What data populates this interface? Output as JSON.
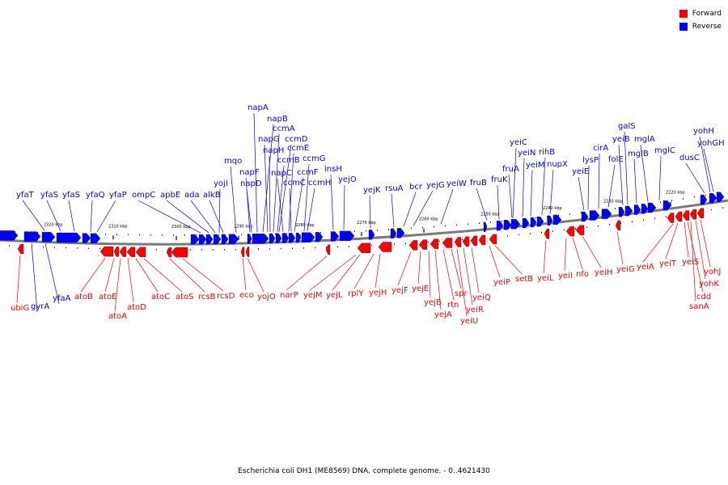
{
  "legend": {
    "forward_label": "Forward",
    "forward_color": "#ff0000",
    "reverse_label": "Reverse",
    "reverse_color": "#0000ff"
  },
  "caption": "Escherichia coli DH1 (ME8569) DNA, complete genome. - 0..4621430",
  "scale_labels": [
    "2320 kbp",
    "2310 kbp",
    "2300 kbp",
    "2290 kbp",
    "2280 kbp",
    "2270 kbp",
    "2260 kbp",
    "2250 kbp",
    "2240 kbp",
    "2230 kbp",
    "2220 kbp"
  ],
  "reverse_genes": [
    "yfaT",
    "yfaS",
    "yfaS",
    "yfaQ",
    "yfaP",
    "ompC",
    "apbE",
    "ada",
    "alkB",
    "yojI",
    "mqo",
    "napF",
    "napD",
    "napA",
    "napB",
    "napG",
    "napH",
    "ccmA",
    "ccmB",
    "napC",
    "ccmD",
    "ccmE",
    "ccmC",
    "ccmF",
    "ccmG",
    "ccmH",
    "insH",
    "yejO",
    "yejK",
    "rsuA",
    "bcr",
    "yejG",
    "yeiW",
    "fruB",
    "fruK",
    "fruA",
    "yeiC",
    "yeiN",
    "yeiM",
    "rihB",
    "nupX",
    "yeiE",
    "lysP",
    "cirA",
    "folE",
    "yeiB",
    "galS",
    "mglB",
    "mglA",
    "mglC",
    "dusC",
    "yohH",
    "yohGH",
    "gyrA",
    "yfaA"
  ],
  "forward_genes": [
    "ubiG",
    "atoB",
    "atoE",
    "atoA",
    "atoD",
    "atoC",
    "atoS",
    "rcsB",
    "rcsD",
    "eco",
    "yojO",
    "narP",
    "yejM",
    "yejL",
    "rplY",
    "yejH",
    "yejF",
    "yejE",
    "yejB",
    "yejA",
    "rtn",
    "spr",
    "yeiU",
    "yeiR",
    "yeiQ",
    "yeiP",
    "setB",
    "yeiL",
    "yeiI",
    "nfo",
    "yeiH",
    "yeiG",
    "yeiA",
    "yeiT",
    "yeiS",
    "cdd",
    "sanA",
    "yohK",
    "yohJ"
  ]
}
